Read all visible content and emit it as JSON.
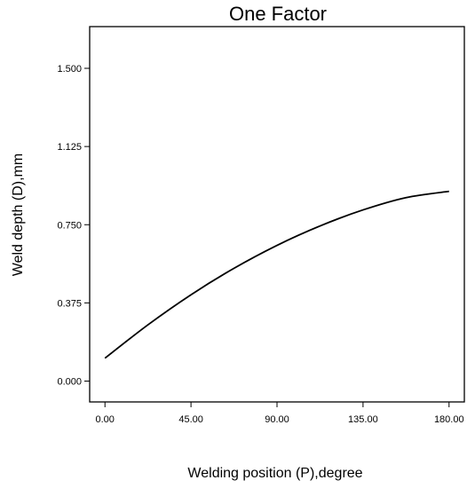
{
  "chart_data": {
    "type": "line",
    "title": "One Factor",
    "xlabel": "Welding position (P),degree",
    "ylabel": "Weld depth (D),mm",
    "xlim": [
      -8,
      188
    ],
    "ylim": [
      -0.1,
      1.7
    ],
    "x_ticks": [
      0,
      45,
      90,
      135,
      180
    ],
    "x_tick_labels": [
      "0.00",
      "45.00",
      "90.00",
      "135.00",
      "180.00"
    ],
    "y_ticks": [
      0,
      0.375,
      0.75,
      1.125,
      1.5
    ],
    "y_tick_labels": [
      "0.000",
      "0.375",
      "0.750",
      "1.125",
      "1.500"
    ],
    "grid": false,
    "series": [
      {
        "x": [
          0,
          22.5,
          45,
          67.5,
          90,
          112.5,
          135,
          157.5,
          180
        ],
        "y": [
          0.11,
          0.27,
          0.414,
          0.541,
          0.651,
          0.744,
          0.821,
          0.88,
          0.91
        ],
        "color": "#000000"
      }
    ]
  }
}
